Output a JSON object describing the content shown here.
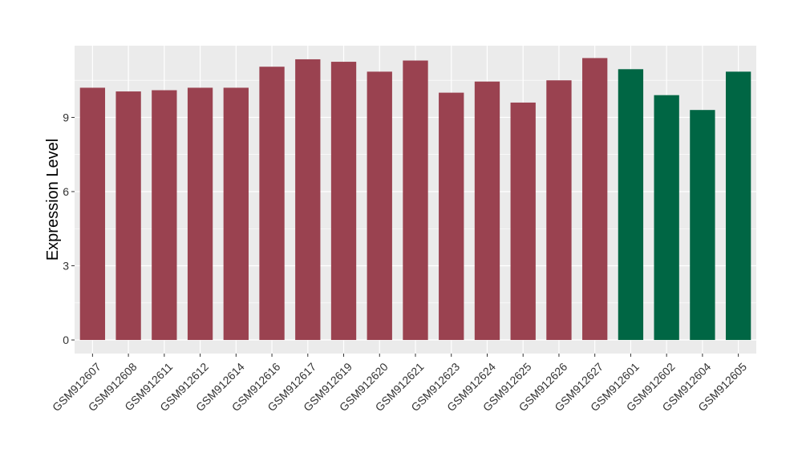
{
  "chart_data": {
    "type": "bar",
    "title": "",
    "xlabel": "",
    "ylabel": "Expression Level",
    "ylim": [
      -0.55,
      11.9
    ],
    "yticks": [
      0,
      3,
      6,
      9
    ],
    "grid": true,
    "categories": [
      "GSM912607",
      "GSM912608",
      "GSM912611",
      "GSM912612",
      "GSM912614",
      "GSM912616",
      "GSM912617",
      "GSM912619",
      "GSM912620",
      "GSM912621",
      "GSM912623",
      "GSM912624",
      "GSM912625",
      "GSM912626",
      "GSM912627",
      "GSM912601",
      "GSM912602",
      "GSM912604",
      "GSM912605"
    ],
    "values": [
      10.2,
      10.05,
      10.1,
      10.2,
      10.2,
      11.05,
      11.35,
      11.25,
      10.85,
      11.3,
      10.0,
      10.45,
      9.6,
      10.5,
      11.4,
      10.95,
      9.9,
      9.3,
      10.85
    ],
    "bar_colors": [
      "#9A4250",
      "#9A4250",
      "#9A4250",
      "#9A4250",
      "#9A4250",
      "#9A4250",
      "#9A4250",
      "#9A4250",
      "#9A4250",
      "#9A4250",
      "#9A4250",
      "#9A4250",
      "#9A4250",
      "#9A4250",
      "#9A4250",
      "#006644",
      "#006644",
      "#006644",
      "#006644"
    ],
    "panel_color": "#EBEBEB",
    "grid_color": "#FFFFFF"
  }
}
